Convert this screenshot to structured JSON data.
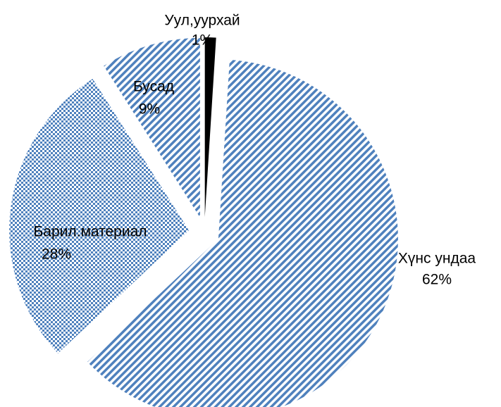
{
  "chart_data": {
    "type": "pie",
    "categories": [
      "Уул,уурхай",
      "Хүнс ундаа",
      "Барил.материал",
      "Бусад"
    ],
    "values": [
      1,
      62,
      28,
      9
    ],
    "value_labels": [
      "1%",
      "62%",
      "28%",
      "9%"
    ],
    "colors": [
      "#000000",
      "#4f81bd",
      "#4f81bd",
      "#4f81bd"
    ],
    "patterns": [
      "solid",
      "stripes",
      "dots",
      "stripes"
    ]
  }
}
